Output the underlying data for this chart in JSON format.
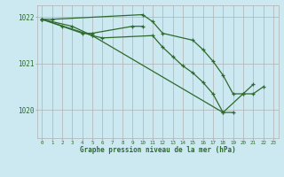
{
  "background_color": "#cce8f0",
  "grid_color": "#b0b0b0",
  "line_color": "#2d6b2d",
  "marker_color": "#2d6b2d",
  "xlabel": "Graphe pression niveau de la mer (hPa)",
  "xlabel_color": "#2d6b2d",
  "tick_color": "#2d6b2d",
  "ylim": [
    1019.4,
    1022.25
  ],
  "yticks": [
    1020,
    1021,
    1022
  ],
  "xlim": [
    -0.5,
    23.5
  ],
  "xticks": [
    0,
    1,
    2,
    3,
    4,
    5,
    6,
    7,
    8,
    9,
    10,
    11,
    12,
    13,
    14,
    15,
    16,
    17,
    18,
    19,
    20,
    21,
    22,
    23
  ],
  "s1_x": [
    0,
    1,
    10,
    11,
    12,
    15,
    16,
    17,
    18,
    19,
    20,
    21
  ],
  "s1_y": [
    1021.95,
    1021.95,
    1022.05,
    1021.9,
    1021.65,
    1021.5,
    1021.3,
    1021.05,
    1020.75,
    1020.35,
    1020.35,
    1020.55
  ],
  "s2_x": [
    0,
    2,
    4,
    5,
    9,
    10
  ],
  "s2_y": [
    1021.95,
    1021.8,
    1021.65,
    1021.65,
    1021.8,
    1021.8
  ],
  "s3_x": [
    0,
    3,
    5,
    6,
    11,
    12,
    13,
    14,
    15,
    16,
    17,
    18,
    19
  ],
  "s3_y": [
    1021.95,
    1021.8,
    1021.6,
    1021.55,
    1021.6,
    1021.35,
    1021.15,
    1020.95,
    1020.8,
    1020.6,
    1020.35,
    1019.95,
    1019.95
  ],
  "s4_x": [
    0,
    5,
    18,
    20,
    21,
    22
  ],
  "s4_y": [
    1021.95,
    1021.6,
    1019.95,
    1020.35,
    1020.35,
    1020.5
  ]
}
